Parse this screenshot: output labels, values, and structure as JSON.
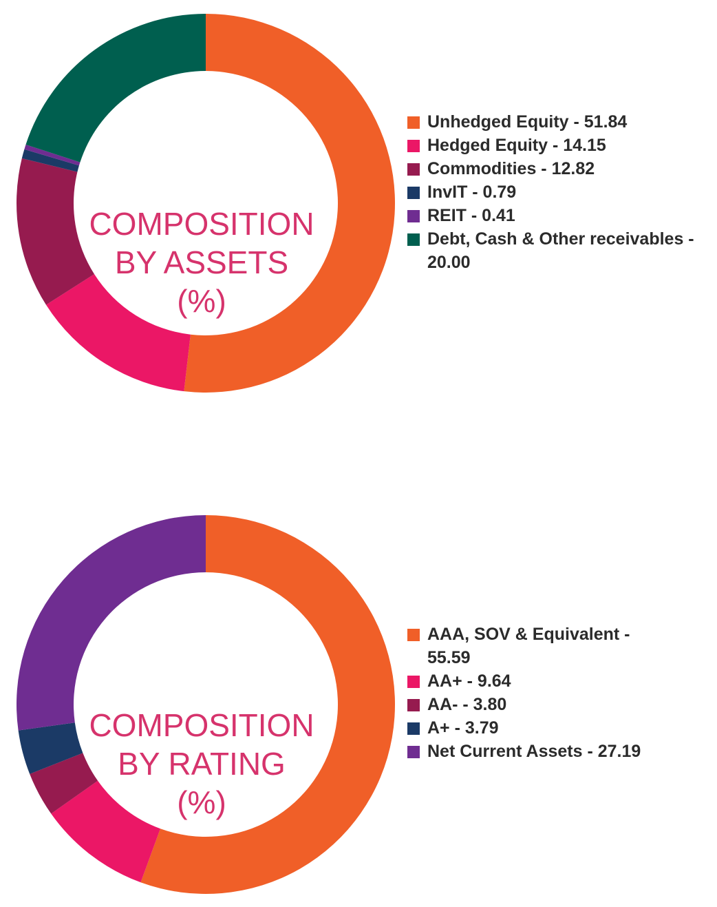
{
  "chart_data": [
    {
      "type": "pie",
      "title": "COMPOSITION BY ASSETS (%)",
      "title_lines": [
        "COMPOSITION",
        "BY ASSETS",
        "(%)"
      ],
      "slices": [
        {
          "label": "Unhedged Equity",
          "value": 51.84,
          "legend": "Unhedged Equity - 51.84",
          "color": "#f05f28"
        },
        {
          "label": "Hedged Equity",
          "value": 14.15,
          "legend": "Hedged Equity - 14.15",
          "color": "#eb1766"
        },
        {
          "label": "Commodities",
          "value": 12.82,
          "legend": "Commodities - 12.82",
          "color": "#961b4f"
        },
        {
          "label": "InvIT",
          "value": 0.79,
          "legend": "InvIT - 0.79",
          "color": "#1b3a66"
        },
        {
          "label": "REIT",
          "value": 0.41,
          "legend": "REIT - 0.41",
          "color": "#6f2d91"
        },
        {
          "label": "Debt, Cash & Other receivables",
          "value": 20.0,
          "legend": "Debt, Cash & Other receivables - 20.00",
          "color": "#005f4f"
        }
      ],
      "legend_position": "right"
    },
    {
      "type": "pie",
      "title": "COMPOSITION BY RATING (%)",
      "title_lines": [
        "COMPOSITION",
        "BY RATING",
        "(%)"
      ],
      "slices": [
        {
          "label": "AAA, SOV & Equivalent",
          "value": 55.59,
          "legend": "AAA, SOV & Equivalent - 55.59",
          "color": "#f05f28"
        },
        {
          "label": "AA+",
          "value": 9.64,
          "legend": "AA+ - 9.64",
          "color": "#eb1766"
        },
        {
          "label": "AA-",
          "value": 3.8,
          "legend": "AA- - 3.80",
          "color": "#961b4f"
        },
        {
          "label": "A+",
          "value": 3.79,
          "legend": "A+ - 3.79",
          "color": "#1b3a66"
        },
        {
          "label": "Net Current Assets",
          "value": 27.19,
          "legend": "Net Current Assets - 27.19",
          "color": "#6f2d91"
        }
      ],
      "legend_position": "right"
    }
  ]
}
